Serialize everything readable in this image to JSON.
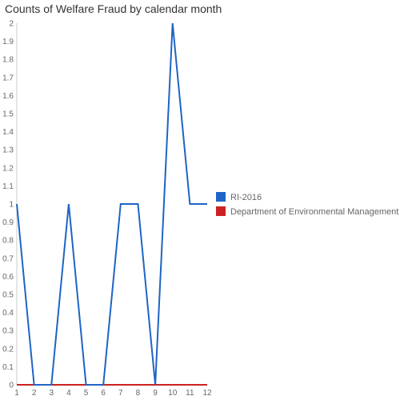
{
  "chart_data": {
    "type": "line",
    "title": "Counts of Welfare Fraud by calendar month",
    "x": [
      1,
      2,
      3,
      4,
      5,
      6,
      7,
      8,
      9,
      10,
      11,
      12
    ],
    "x_tick_labels": [
      "1",
      "2",
      "3",
      "4",
      "5",
      "6",
      "7",
      "8",
      "9",
      "10",
      "11",
      "12"
    ],
    "y_tick_labels": [
      "0",
      "0.1",
      "0.2",
      "0.3",
      "0.4",
      "0.5",
      "0.6",
      "0.7",
      "0.8",
      "0.9",
      "1",
      "1.1",
      "1.2",
      "1.3",
      "1.4",
      "1.5",
      "1.6",
      "1.7",
      "1.8",
      "1.9",
      "2"
    ],
    "ylim": [
      0,
      2
    ],
    "grid": false,
    "legend_position": "right",
    "series": [
      {
        "name": "RI-2016",
        "color": "#1f64c4",
        "values": [
          1,
          0,
          0,
          1,
          0,
          0,
          1,
          1,
          0,
          2,
          1,
          1
        ]
      },
      {
        "name": "Department of Environmental Management",
        "color": "#cc2222",
        "values": [
          0,
          0,
          0,
          0,
          0,
          0,
          0,
          0,
          0,
          0,
          0,
          0
        ]
      }
    ]
  }
}
